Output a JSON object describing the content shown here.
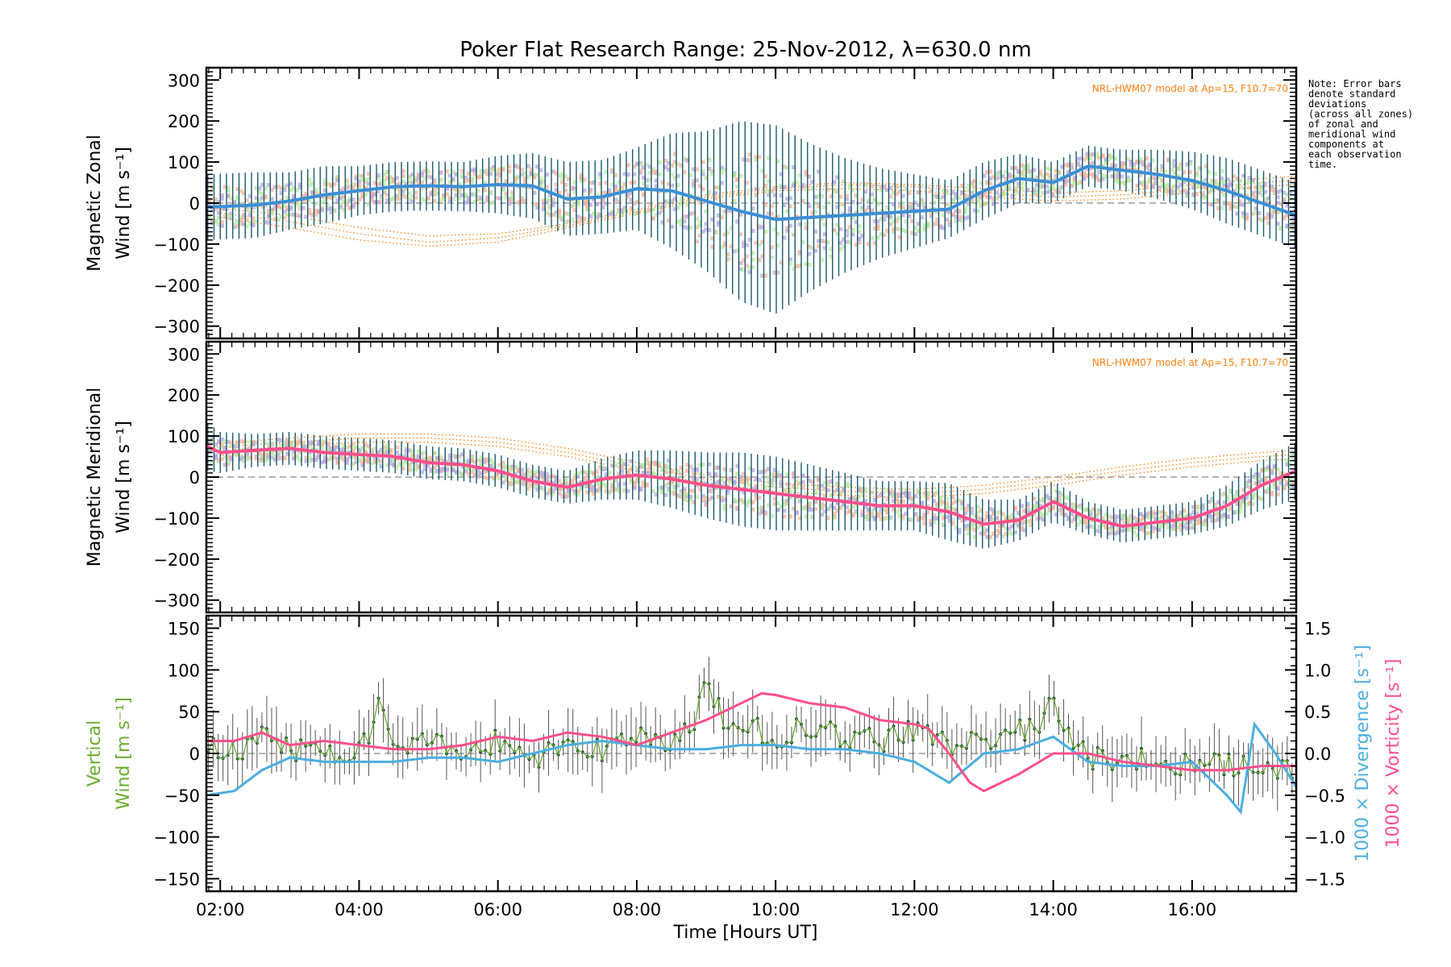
{
  "chart_data": {
    "title": "Poker Flat Research Range: 25-Nov-2012, λ=630.0 nm",
    "xlabel": "Time [Hours UT]",
    "x_tick_labels": [
      "02:00",
      "04:00",
      "06:00",
      "08:00",
      "10:00",
      "12:00",
      "14:00",
      "16:00"
    ],
    "x_tick_values": [
      2,
      4,
      6,
      8,
      10,
      12,
      14,
      16
    ],
    "xlim": [
      1.8,
      17.5
    ],
    "note": [
      "Note: Error bars",
      "denote standard",
      "deviations",
      "(across all zones)",
      "of zonal and",
      "meridional wind",
      "components at",
      "each observation",
      "time."
    ],
    "colors": {
      "zonal_mean": "#3b8fd6",
      "zonal_errbar": "#1a5a6e",
      "meridional_mean": "#ff4f8b",
      "meridional_errbar": "#1a5a6e",
      "zone_scatter_a": "#f7b49a",
      "zone_scatter_b": "#b7a8dd",
      "zone_scatter_c": "#b9eaa0",
      "model": "#ff7f0e",
      "vertical": "#6aac2e",
      "divergence": "#4aaee0",
      "vorticity": "#ff4f8b",
      "zero_line": "#888888"
    },
    "panels": [
      {
        "type": "line",
        "ylabel_line1": "Magnetic Zonal",
        "ylabel_line2": "Wind [m s⁻¹]",
        "ylim": [
          -330,
          330
        ],
        "y_ticks": [
          -300,
          -200,
          -100,
          0,
          100,
          200,
          300
        ],
        "y_tick_labels": [
          "−300",
          "−200",
          "−100",
          "0",
          "100",
          "200",
          "300"
        ],
        "model_label": "NRL-HWM07 model at Ap=15, F10.7=70",
        "series": [
          {
            "x": [
              1.8,
              2.5,
              3.0,
              3.5,
              4.0,
              4.5,
              5.0,
              5.5,
              6.0,
              6.5,
              7.0,
              7.5,
              8.0,
              8.5,
              9.0,
              9.5,
              10.0,
              10.5,
              11.0,
              11.5,
              12.0,
              12.5,
              13.0,
              13.5,
              14.0,
              14.5,
              15.0,
              15.5,
              16.0,
              16.5,
              17.0,
              17.5
            ],
            "y": [
              -10,
              -5,
              5,
              20,
              30,
              40,
              42,
              40,
              45,
              42,
              10,
              15,
              35,
              30,
              5,
              -20,
              -40,
              -35,
              -30,
              -25,
              -20,
              -15,
              30,
              60,
              50,
              90,
              80,
              70,
              55,
              30,
              0,
              -30
            ],
            "std": [
              80,
              80,
              70,
              70,
              60,
              60,
              60,
              60,
              70,
              80,
              90,
              90,
              100,
              140,
              170,
              220,
              230,
              180,
              140,
              110,
              90,
              70,
              70,
              60,
              50,
              50,
              50,
              60,
              70,
              80,
              80,
              80
            ]
          }
        ],
        "model_curves": [
          {
            "x": [
              1.8,
              3,
              4,
              5,
              6,
              7,
              8,
              9,
              10,
              11,
              12,
              13,
              14,
              15,
              16,
              17,
              17.5
            ],
            "y": [
              -20,
              -45,
              -75,
              -95,
              -85,
              -55,
              -20,
              15,
              35,
              45,
              40,
              25,
              15,
              20,
              35,
              50,
              55
            ]
          },
          {
            "x": [
              1.8,
              3,
              4,
              5,
              6,
              7,
              8,
              9,
              10,
              11,
              12,
              13,
              14,
              15,
              16,
              17,
              17.5
            ],
            "y": [
              -10,
              -30,
              -60,
              -80,
              -75,
              -50,
              -15,
              20,
              40,
              50,
              45,
              35,
              25,
              30,
              45,
              60,
              65
            ]
          },
          {
            "x": [
              1.8,
              3,
              4,
              5,
              6,
              7,
              8,
              9,
              10,
              11,
              12,
              13,
              14,
              15,
              16,
              17,
              17.5
            ],
            "y": [
              -30,
              -60,
              -90,
              -105,
              -95,
              -60,
              -25,
              10,
              30,
              35,
              30,
              15,
              5,
              10,
              25,
              40,
              45
            ]
          }
        ]
      },
      {
        "type": "line",
        "ylabel_line1": "Magnetic Meridional",
        "ylabel_line2": "Wind [m s⁻¹]",
        "ylim": [
          -330,
          330
        ],
        "y_ticks": [
          -300,
          -200,
          -100,
          0,
          100,
          200,
          300
        ],
        "y_tick_labels": [
          "−300",
          "−200",
          "−100",
          "0",
          "100",
          "200",
          "300"
        ],
        "model_label": "NRL-HWM07 model at Ap=15, F10.7=70",
        "series": [
          {
            "x": [
              1.8,
              2.0,
              2.5,
              3.0,
              3.5,
              4.0,
              4.5,
              5.0,
              5.5,
              6.0,
              6.5,
              7.0,
              7.5,
              8.0,
              8.5,
              9.0,
              9.5,
              10.0,
              10.5,
              11.0,
              11.5,
              12.0,
              12.5,
              13.0,
              13.5,
              14.0,
              14.5,
              15.0,
              15.5,
              16.0,
              16.5,
              17.0,
              17.5
            ],
            "y": [
              75,
              60,
              65,
              70,
              60,
              55,
              50,
              35,
              30,
              15,
              -10,
              -25,
              -5,
              5,
              -5,
              -20,
              -30,
              -40,
              -50,
              -60,
              -70,
              -70,
              -85,
              -115,
              -105,
              -60,
              -100,
              -120,
              -110,
              -100,
              -70,
              -20,
              15
            ],
            "std": [
              60,
              50,
              40,
              40,
              40,
              40,
              40,
              40,
              40,
              40,
              40,
              40,
              50,
              60,
              70,
              80,
              90,
              90,
              80,
              70,
              60,
              60,
              70,
              60,
              50,
              50,
              40,
              40,
              40,
              40,
              50,
              60,
              70
            ]
          }
        ],
        "model_curves": [
          {
            "x": [
              1.8,
              3,
              4,
              5,
              6,
              7,
              8,
              9,
              10,
              11,
              12,
              13,
              14,
              15,
              16,
              17,
              17.5
            ],
            "y": [
              70,
              85,
              95,
              95,
              85,
              60,
              25,
              -5,
              -25,
              -35,
              -40,
              -30,
              -10,
              15,
              35,
              50,
              55
            ]
          },
          {
            "x": [
              1.8,
              3,
              4,
              5,
              6,
              7,
              8,
              9,
              10,
              11,
              12,
              13,
              14,
              15,
              16,
              17,
              17.5
            ],
            "y": [
              60,
              75,
              85,
              85,
              75,
              50,
              15,
              -15,
              -35,
              -45,
              -50,
              -40,
              -20,
              5,
              25,
              40,
              45
            ]
          },
          {
            "x": [
              1.8,
              3,
              4,
              5,
              6,
              7,
              8,
              9,
              10,
              11,
              12,
              13,
              14,
              15,
              16,
              17,
              17.5
            ],
            "y": [
              80,
              95,
              105,
              105,
              95,
              70,
              35,
              5,
              -15,
              -25,
              -30,
              -20,
              0,
              25,
              45,
              60,
              65
            ]
          }
        ]
      },
      {
        "type": "line",
        "ylabel_line1": "Vertical",
        "ylabel_line2": "Wind [m s⁻¹]",
        "ylim": [
          -165,
          165
        ],
        "y_ticks": [
          -150,
          -100,
          -50,
          0,
          50,
          100,
          150
        ],
        "y_tick_labels": [
          "−150",
          "−100",
          "−50",
          "0",
          "50",
          "100",
          "150"
        ],
        "y2lim": [
          -1.65,
          1.65
        ],
        "y2_ticks": [
          -1.5,
          -1.0,
          -0.5,
          0.0,
          0.5,
          1.0,
          1.5
        ],
        "y2_tick_labels": [
          "−1.5",
          "−1.0",
          "−0.5",
          "0.0",
          "0.5",
          "1.0",
          "1.5"
        ],
        "y2label_divergence": "1000 × Divergence [s⁻¹]",
        "y2label_vorticity": "1000 × Vorticity [s⁻¹]",
        "series": [
          {
            "name": "Vertical wind",
            "x": [
              1.8,
              2.2,
              2.6,
              3.0,
              3.4,
              3.8,
              4.1,
              4.3,
              4.5,
              5.0,
              5.5,
              6.0,
              6.5,
              7.0,
              7.5,
              8.0,
              8.5,
              8.8,
              9.0,
              9.3,
              9.7,
              10.0,
              10.5,
              11.0,
              11.5,
              12.0,
              12.5,
              13.0,
              13.5,
              13.8,
              14.0,
              14.2,
              14.5,
              15.0,
              15.5,
              16.0,
              16.5,
              17.0,
              17.5
            ],
            "y": [
              10,
              0,
              20,
              5,
              10,
              0,
              15,
              70,
              5,
              10,
              0,
              15,
              -10,
              10,
              5,
              20,
              10,
              35,
              90,
              25,
              30,
              15,
              35,
              20,
              15,
              25,
              10,
              20,
              25,
              40,
              60,
              30,
              -5,
              -5,
              -10,
              -15,
              -10,
              -20,
              -25
            ]
          },
          {
            "name": "Divergence",
            "x": [
              1.8,
              2.2,
              2.6,
              3.0,
              3.5,
              4.0,
              4.5,
              5.0,
              5.5,
              6.0,
              6.5,
              7.0,
              7.5,
              8.0,
              8.5,
              9.0,
              9.5,
              10.0,
              10.5,
              11.0,
              11.5,
              12.0,
              12.5,
              13.0,
              13.5,
              14.0,
              14.5,
              15.0,
              15.5,
              16.0,
              16.5,
              16.7,
              16.9,
              17.2,
              17.5
            ],
            "y": [
              -0.5,
              -0.45,
              -0.2,
              -0.05,
              -0.1,
              -0.1,
              -0.1,
              -0.05,
              -0.05,
              -0.1,
              0.0,
              0.1,
              0.15,
              0.1,
              0.05,
              0.05,
              0.1,
              0.1,
              0.05,
              0.05,
              0.0,
              -0.1,
              -0.35,
              0.0,
              0.05,
              0.2,
              -0.1,
              -0.15,
              -0.15,
              -0.1,
              -0.5,
              -0.7,
              0.35,
              0.0,
              -0.4
            ]
          },
          {
            "name": "Vorticity",
            "x": [
              1.8,
              2.2,
              2.6,
              3.0,
              3.5,
              4.0,
              4.5,
              5.0,
              5.5,
              6.0,
              6.5,
              7.0,
              7.5,
              8.0,
              8.5,
              9.0,
              9.5,
              9.8,
              10.0,
              10.5,
              11.0,
              11.5,
              12.0,
              12.2,
              12.5,
              12.8,
              13.0,
              13.5,
              14.0,
              14.5,
              15.0,
              15.5,
              16.0,
              16.5,
              17.0,
              17.5
            ],
            "y": [
              0.15,
              0.15,
              0.25,
              0.1,
              0.15,
              0.1,
              0.05,
              0.05,
              0.1,
              0.2,
              0.15,
              0.25,
              0.2,
              0.1,
              0.25,
              0.4,
              0.6,
              0.72,
              0.7,
              0.6,
              0.55,
              0.4,
              0.35,
              0.3,
              0.0,
              -0.35,
              -0.45,
              -0.25,
              0.0,
              0.0,
              -0.1,
              -0.15,
              -0.2,
              -0.2,
              -0.15,
              -0.15
            ]
          }
        ]
      }
    ]
  }
}
